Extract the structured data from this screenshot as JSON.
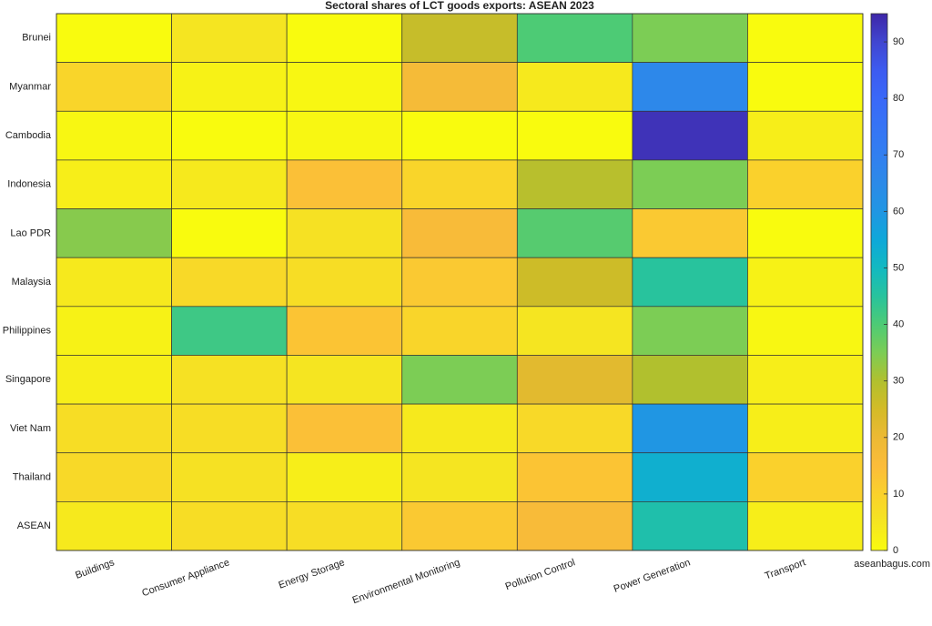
{
  "chart_data": {
    "type": "heatmap",
    "title": "Sectoral shares of LCT goods exports: ASEAN 2023",
    "source": "aseanbagus.com",
    "x_categories": [
      "Buildings",
      "Consumer Appliance",
      "Energy Storage",
      "Environmental Monitoring",
      "Pollution Control",
      "Power Generation",
      "Transport"
    ],
    "y_categories": [
      "Brunei",
      "Myanmar",
      "Cambodia",
      "Indonesia",
      "Lao  PDR",
      "Malaysia",
      "Philippines",
      "Singapore",
      "Viet Nam",
      "Thailand",
      "ASEAN"
    ],
    "values": [
      [
        0,
        5,
        0,
        27,
        40,
        35,
        0
      ],
      [
        9,
        2,
        1,
        17,
        4,
        66,
        0
      ],
      [
        1,
        0,
        1,
        0,
        0,
        93,
        3
      ],
      [
        3,
        4,
        14,
        9,
        29,
        35,
        10
      ],
      [
        34,
        0,
        6,
        16,
        39,
        12,
        0
      ],
      [
        4,
        8,
        7,
        12,
        26,
        45,
        2
      ],
      [
        2,
        42,
        13,
        9,
        5,
        35,
        1
      ],
      [
        3,
        6,
        5,
        35,
        22,
        30,
        3
      ],
      [
        7,
        7,
        14,
        4,
        8,
        60,
        3
      ],
      [
        8,
        6,
        3,
        5,
        13,
        53,
        10
      ],
      [
        4,
        7,
        7,
        12,
        16,
        47,
        3
      ]
    ],
    "zlim": [
      0,
      95
    ],
    "zticks": [
      0,
      10,
      20,
      30,
      40,
      50,
      60,
      70,
      80,
      90
    ],
    "colormap": [
      "#f9fb0e",
      "#f5e521",
      "#fad12c",
      "#fbbc3a",
      "#ecb934",
      "#d4bb27",
      "#b1c02e",
      "#7ccd55",
      "#4dcb75",
      "#28c39d",
      "#12b9c1",
      "#0ea8d9",
      "#2096e3",
      "#2c8ae8",
      "#327ff0",
      "#3674f5",
      "#3a68f8",
      "#3d5bf0",
      "#4046d0",
      "#3e26a8"
    ]
  }
}
